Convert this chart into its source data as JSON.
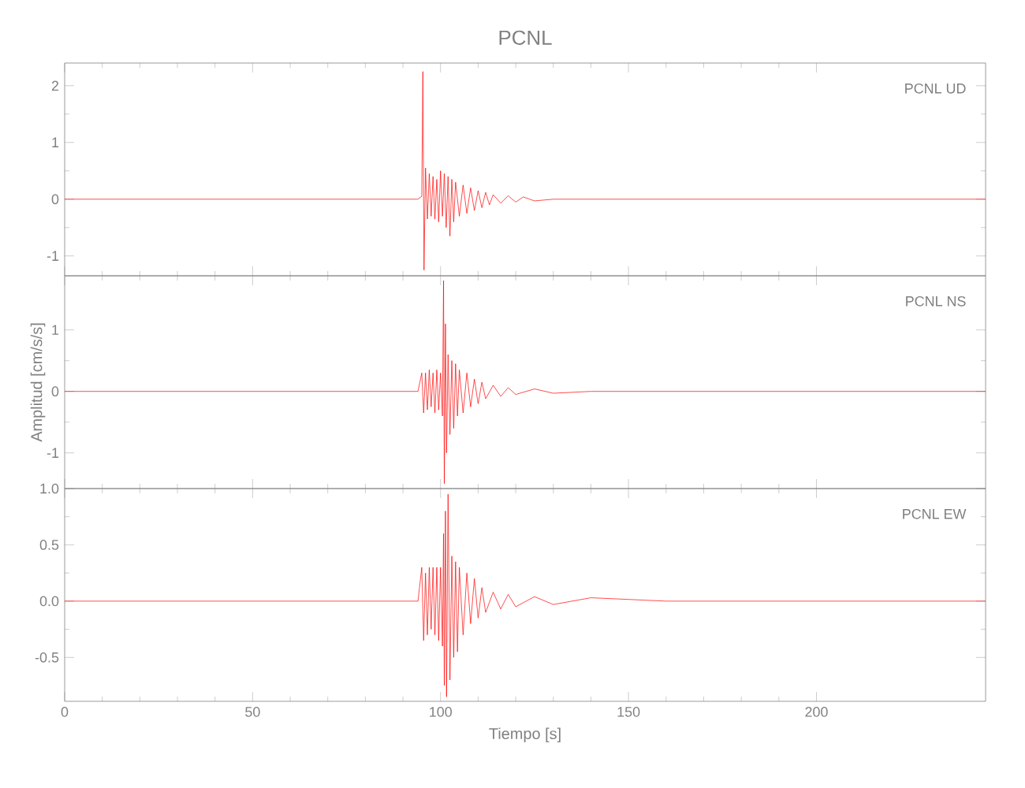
{
  "chart_data": [
    {
      "type": "line",
      "title": "PCNL",
      "annotations": [
        "PCNL UD"
      ],
      "color": "#ff0000",
      "tick_labels": "y",
      "xlim": [
        0,
        245
      ],
      "xticks": [
        0,
        50,
        100,
        150,
        200
      ],
      "ylim": [
        -1.35,
        2.4
      ],
      "yticks": [
        -1,
        0,
        1,
        2
      ],
      "x": [
        0,
        20,
        40,
        60,
        80,
        94,
        95,
        95.3,
        95.6,
        96,
        96.5,
        97,
        97.5,
        98,
        98.5,
        99,
        99.5,
        100,
        100.5,
        101,
        101.5,
        102,
        102.5,
        103,
        103.5,
        104,
        105,
        106,
        107,
        108,
        109,
        110,
        111,
        112,
        113,
        114,
        116,
        118,
        120,
        122,
        125,
        130,
        140,
        160,
        180,
        200,
        220,
        245
      ],
      "values": [
        0,
        0,
        0,
        0,
        0,
        0,
        0.05,
        2.25,
        -1.25,
        0.55,
        -0.35,
        0.45,
        -0.3,
        0.4,
        -0.35,
        0.35,
        -0.4,
        0.5,
        -0.3,
        0.45,
        -0.5,
        0.4,
        -0.65,
        0.35,
        -0.4,
        0.3,
        -0.3,
        0.25,
        -0.25,
        0.2,
        -0.2,
        0.15,
        -0.15,
        0.12,
        -0.1,
        0.08,
        -0.07,
        0.06,
        -0.05,
        0.04,
        -0.03,
        0,
        0,
        0,
        0,
        0,
        0,
        0
      ]
    },
    {
      "type": "line",
      "ylabel": "Amplitud [cm/s/s]",
      "annotations": [
        "PCNL NS"
      ],
      "color": "#ff0000",
      "tick_labels": "y",
      "xlim": [
        0,
        245
      ],
      "xticks": [
        0,
        50,
        100,
        150,
        200
      ],
      "ylim": [
        -1.58,
        1.88
      ],
      "yticks": [
        -1,
        0,
        1
      ],
      "x": [
        0,
        20,
        40,
        60,
        80,
        94,
        95,
        95.5,
        96,
        96.5,
        97,
        97.5,
        98,
        98.5,
        99,
        99.5,
        100,
        100.5,
        100.8,
        101,
        101.3,
        101.6,
        102,
        102.5,
        103,
        103.5,
        104,
        104.5,
        105,
        106,
        107,
        108,
        109,
        110,
        111,
        112,
        114,
        116,
        118,
        120,
        125,
        130,
        140,
        160,
        180,
        200,
        220,
        245
      ],
      "values": [
        0,
        0,
        0,
        0,
        0,
        0,
        0.3,
        -0.35,
        0.3,
        -0.3,
        0.35,
        -0.25,
        0.3,
        -0.35,
        0.35,
        -0.3,
        0.3,
        -0.4,
        1.8,
        -1.5,
        1.1,
        -1.0,
        0.6,
        -0.7,
        0.5,
        -0.6,
        0.45,
        -0.4,
        0.35,
        -0.35,
        0.3,
        -0.25,
        0.2,
        -0.2,
        0.15,
        -0.12,
        0.1,
        -0.08,
        0.06,
        -0.05,
        0.04,
        -0.03,
        0,
        0,
        0,
        0,
        0,
        0
      ]
    },
    {
      "type": "line",
      "xlabel": "Tiempo [s]",
      "annotations": [
        "PCNL EW"
      ],
      "color": "#ff0000",
      "xlim": [
        0,
        245
      ],
      "xticks": [
        0,
        50,
        100,
        150,
        200
      ],
      "ylim": [
        -0.89,
        1.0
      ],
      "yticks": [
        -0.5,
        {
          "value": 0,
          "label": "0.0"
        },
        0.5,
        {
          "value": 1,
          "label": "1.0"
        }
      ],
      "x": [
        0,
        20,
        40,
        60,
        80,
        94,
        95,
        95.5,
        96,
        96.5,
        97,
        97.5,
        98,
        98.5,
        99,
        99.5,
        100,
        100.5,
        100.8,
        101,
        101.3,
        101.6,
        102,
        102.5,
        103,
        103.5,
        104,
        104.5,
        105,
        106,
        107,
        108,
        109,
        110,
        111,
        112,
        114,
        116,
        118,
        120,
        125,
        130,
        140,
        160,
        180,
        200,
        220,
        245
      ],
      "values": [
        0,
        0,
        0,
        0,
        0,
        0,
        0.3,
        -0.35,
        0.25,
        -0.3,
        0.3,
        -0.25,
        0.3,
        -0.3,
        0.3,
        -0.35,
        0.3,
        -0.4,
        0.6,
        -0.75,
        0.8,
        -0.85,
        0.95,
        -0.7,
        0.4,
        -0.5,
        0.35,
        -0.45,
        0.3,
        -0.3,
        0.25,
        -0.2,
        0.2,
        -0.15,
        0.12,
        -0.1,
        0.08,
        -0.07,
        0.06,
        -0.05,
        0.04,
        -0.03,
        0.03,
        0,
        0,
        0,
        0,
        0
      ]
    }
  ]
}
